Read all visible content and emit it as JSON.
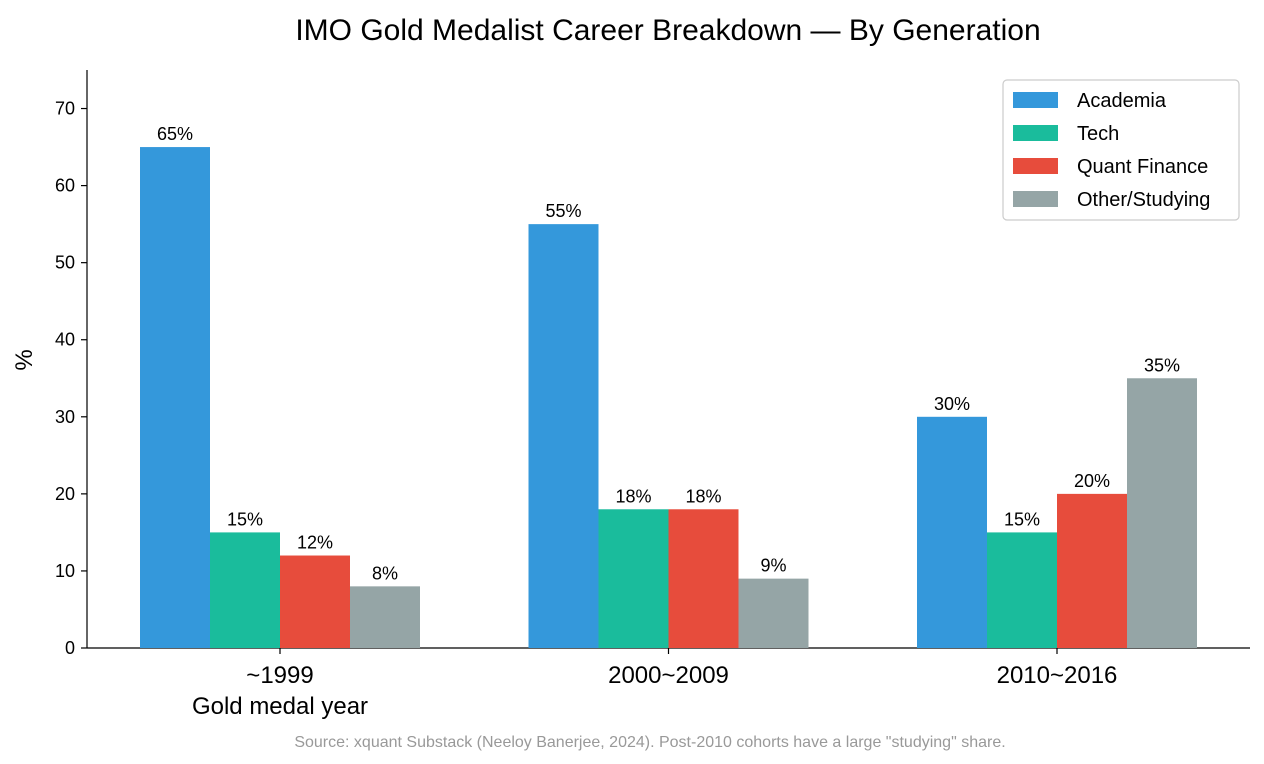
{
  "chart_data": {
    "type": "bar",
    "title": "IMO Gold Medalist Career Breakdown — By Generation",
    "xlabel": "Gold medal year",
    "ylabel": "%",
    "categories": [
      "~1999",
      "2000~2009",
      "2010~2016"
    ],
    "series": [
      {
        "name": "Academia",
        "values": [
          65,
          55,
          30
        ],
        "color": "#3498db",
        "labels": [
          "65%",
          "55%",
          "30%"
        ]
      },
      {
        "name": "Tech",
        "values": [
          15,
          18,
          15
        ],
        "color": "#1abc9c",
        "labels": [
          "15%",
          "18%",
          "15%"
        ]
      },
      {
        "name": "Quant Finance",
        "values": [
          12,
          18,
          20
        ],
        "color": "#e74c3c",
        "labels": [
          "12%",
          "18%",
          "20%"
        ]
      },
      {
        "name": "Other/Studying",
        "values": [
          8,
          9,
          35
        ],
        "color": "#95a5a6",
        "labels": [
          "8%",
          "9%",
          "35%"
        ]
      }
    ],
    "ylim": [
      0,
      75
    ],
    "yticks": [
      0,
      10,
      20,
      30,
      40,
      50,
      60,
      70
    ],
    "grid": false,
    "legend_position": "top-right",
    "source_note": "Source: xquant Substack (Neeloy Banerjee, 2024). Post-2010 cohorts have a large \"studying\" share."
  }
}
